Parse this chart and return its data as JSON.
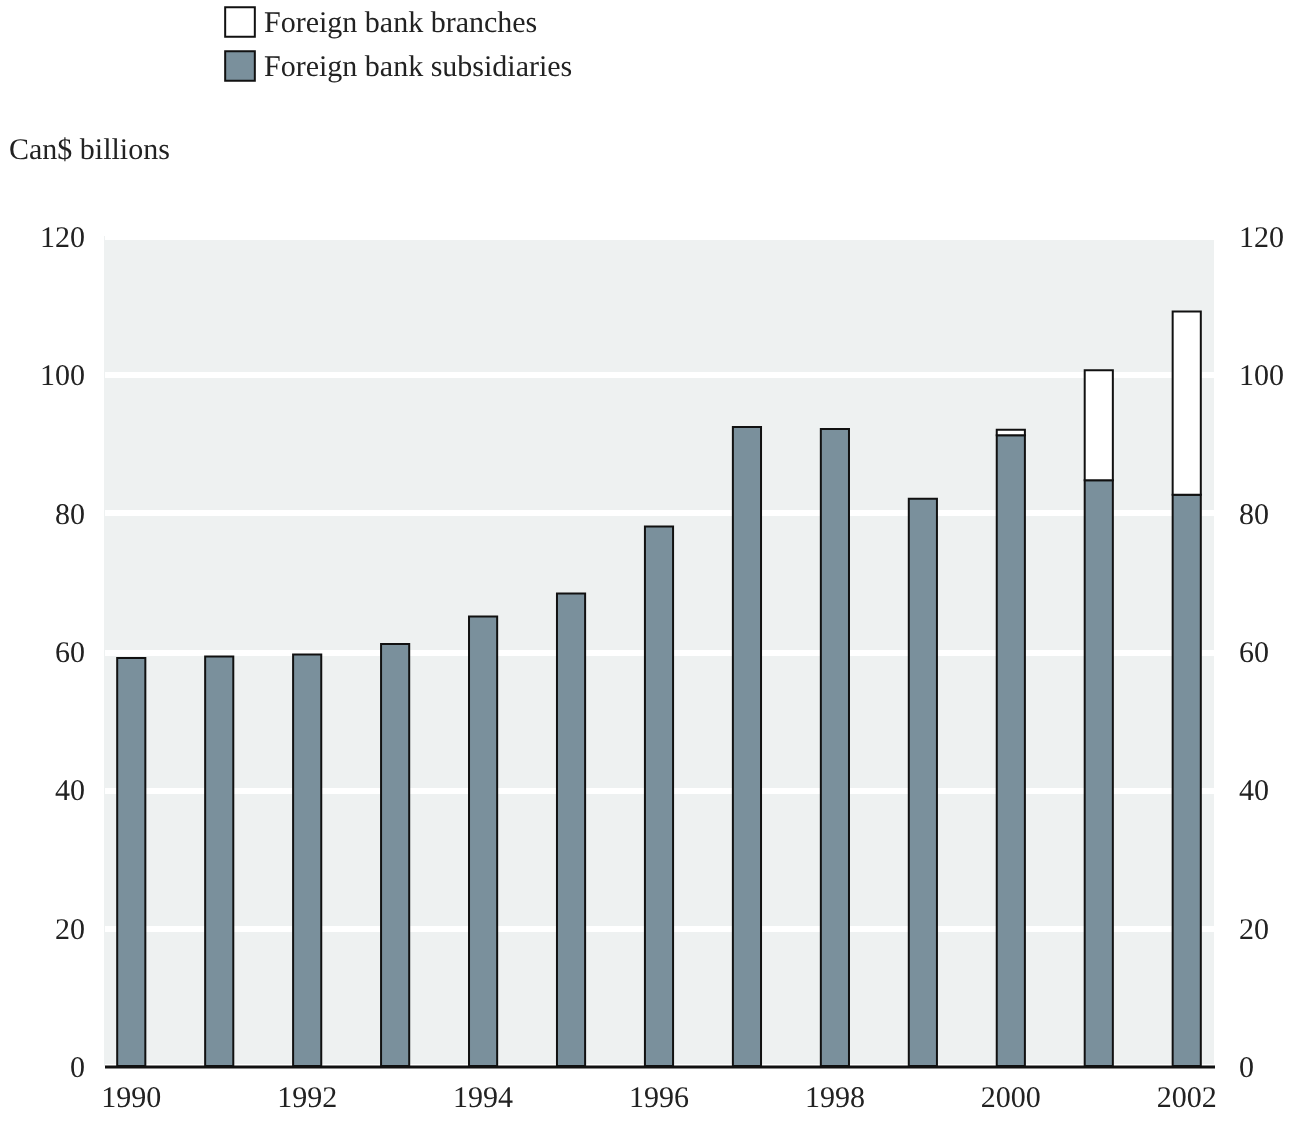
{
  "chart_data": {
    "type": "bar",
    "stacked": true,
    "ylabel": "Can$ billions",
    "categories": [
      "1990",
      null,
      "1992",
      null,
      "1994",
      null,
      "1996",
      null,
      "1998",
      null,
      "2000",
      null,
      "2002"
    ],
    "series": [
      {
        "name": "Foreign bank subsidiaries",
        "color": "#7a909c",
        "values": [
          59,
          59.2,
          59.5,
          61,
          65,
          68.3,
          78,
          92.4,
          92.1,
          82,
          91.2,
          84.7,
          82.6
        ]
      },
      {
        "name": "Foreign bank branches",
        "color": "#ffffff",
        "values": [
          null,
          null,
          null,
          null,
          null,
          null,
          null,
          null,
          null,
          null,
          0.8,
          15.9,
          26.5
        ]
      }
    ],
    "ylim": [
      0,
      120
    ],
    "yticks": [
      0,
      20,
      40,
      60,
      80,
      100,
      120
    ],
    "y2lim": [
      0,
      120
    ],
    "y2ticks": [
      0,
      20,
      40,
      60,
      80,
      100,
      120
    ],
    "grid": "y",
    "legend": "top left"
  }
}
